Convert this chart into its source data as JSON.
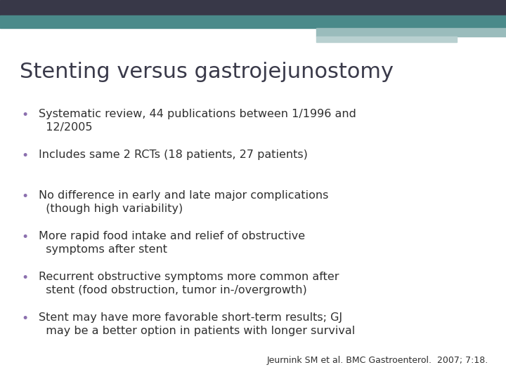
{
  "title": "Stenting versus gastrojejunostomy",
  "title_color": "#3a3a4a",
  "title_fontsize": 22,
  "background_color": "#ffffff",
  "bullet_color": "#8B6FAE",
  "text_color": "#303030",
  "text_fontsize": 11.5,
  "citation": "Jeurnink SM et al. BMC Gastroenterol.  2007; 7:18.",
  "citation_fontsize": 9,
  "bullets": [
    "Systematic review, 44 publications between 1/1996 and\n  12/2005",
    "Includes same 2 RCTs (18 patients, 27 patients)",
    "No difference in early and late major complications\n  (though high variability)",
    "More rapid food intake and relief of obstructive\n  symptoms after stent",
    "Recurrent obstructive symptoms more common after\n  stent (food obstruction, tumor in-/overgrowth)",
    "Stent may have more favorable short-term results; GJ\n  may be a better option in patients with longer survival"
  ],
  "header_dark_color": "#383848",
  "header_teal_color": "#4a8a8a",
  "header_light_color": "#9abcbc",
  "header_pale_color": "#b8d0d0"
}
